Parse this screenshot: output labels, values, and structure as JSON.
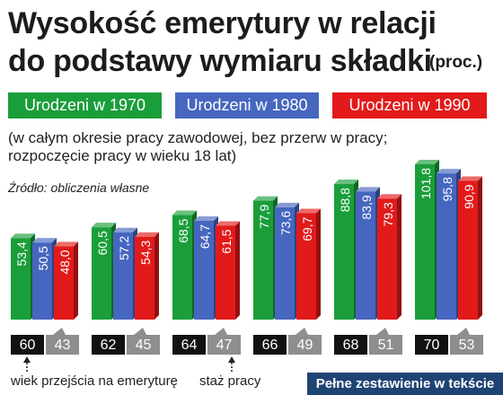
{
  "title": {
    "line1": "Wysokość emerytury w relacji",
    "line2": "do podstawy wymiaru składki",
    "unit": "(proc.)"
  },
  "legend": {
    "items": [
      {
        "label": "Urodzeni w 1970",
        "color": "#1a9e3a"
      },
      {
        "label": "Urodzeni w 1980",
        "color": "#4666c0"
      },
      {
        "label": "Urodzeni w 1990",
        "color": "#e21a1a"
      }
    ]
  },
  "note": {
    "line1": "(w całym okresie pracy zawodowej, bez przerw w pracy;",
    "line2": "rozpoczęcie pracy w wieku 18 lat)"
  },
  "source": "Źródło: obliczenia własne",
  "annotations": {
    "age": "wiek przejścia na emeryturę",
    "stage": "staż pracy"
  },
  "footer": "Pełne zestawienie w tekście",
  "chart_data": {
    "type": "bar",
    "title": "Wysokość emerytury w relacji do podstawy wymiaru składki (proc.)",
    "categories": [
      {
        "age": "60",
        "stage": "43"
      },
      {
        "age": "62",
        "stage": "45"
      },
      {
        "age": "64",
        "stage": "47"
      },
      {
        "age": "66",
        "stage": "49"
      },
      {
        "age": "68",
        "stage": "51"
      },
      {
        "age": "70",
        "stage": "53"
      }
    ],
    "series": [
      {
        "name": "Urodzeni w 1970",
        "color": "#1a9e3a",
        "values": [
          53.4,
          60.5,
          68.5,
          77.9,
          88.8,
          101.8
        ],
        "labels": [
          "53,4",
          "60,5",
          "68,5",
          "77,9",
          "88,8",
          "101,8"
        ]
      },
      {
        "name": "Urodzeni w 1980",
        "color": "#4666c0",
        "values": [
          50.5,
          57.2,
          64.7,
          73.6,
          83.9,
          95.8
        ],
        "labels": [
          "50,5",
          "57,2",
          "64,7",
          "73,6",
          "83,9",
          "95,8"
        ]
      },
      {
        "name": "Urodzeni w 1990",
        "color": "#e21a1a",
        "values": [
          48.0,
          54.3,
          61.5,
          69.7,
          79.3,
          90.9
        ],
        "labels": [
          "48,0",
          "54,3",
          "61,5",
          "69,7",
          "79,3",
          "90,9"
        ]
      }
    ],
    "grid": false,
    "legend_position": "top"
  }
}
